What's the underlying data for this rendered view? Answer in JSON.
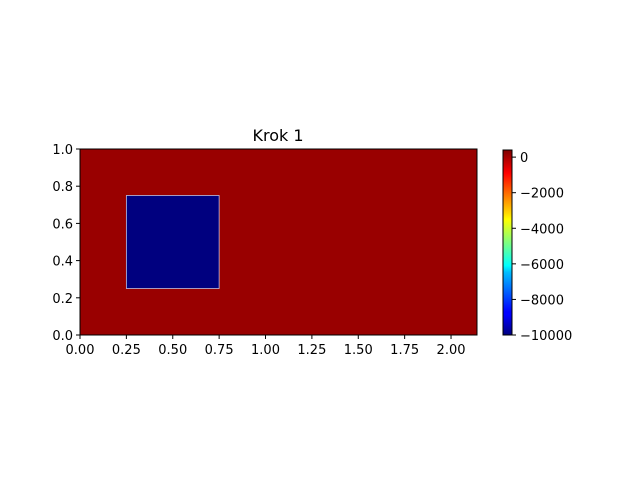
{
  "chart_data": {
    "type": "heatmap",
    "title": "Krok 1",
    "xlabel": "",
    "ylabel": "",
    "xlim": [
      0.0,
      2.14
    ],
    "ylim": [
      0.0,
      1.0
    ],
    "xticks": [
      "0.00",
      "0.25",
      "0.50",
      "0.75",
      "1.00",
      "1.25",
      "1.50",
      "1.75",
      "2.00"
    ],
    "xtick_values": [
      0.0,
      0.25,
      0.5,
      0.75,
      1.0,
      1.25,
      1.5,
      1.75,
      2.0
    ],
    "yticks": [
      "0.0",
      "0.2",
      "0.4",
      "0.6",
      "0.8",
      "1.0"
    ],
    "ytick_values": [
      0.0,
      0.2,
      0.4,
      0.6,
      0.8,
      1.0
    ],
    "colormap": "jet",
    "colorbar": {
      "vmin": -10000,
      "vmax": 400,
      "ticks": [
        "0",
        "−2000",
        "−4000",
        "−6000",
        "−8000",
        "−10000"
      ],
      "tick_values": [
        0,
        -2000,
        -4000,
        -6000,
        -8000,
        -10000
      ]
    },
    "field": {
      "background_value": 400,
      "background_color": "#990000",
      "regions": [
        {
          "x0": 0.25,
          "x1": 0.75,
          "y0": 0.25,
          "y1": 0.75,
          "value": -10000,
          "color": "#00007f"
        }
      ]
    },
    "grid": false
  }
}
